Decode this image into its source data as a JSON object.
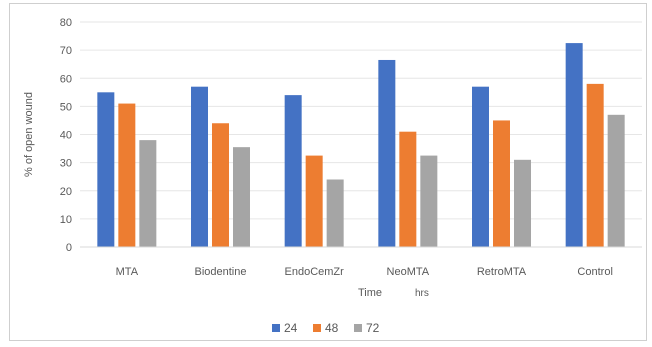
{
  "chart_data": {
    "type": "bar",
    "title": "",
    "xlabel": "Time",
    "xlabel_unit": "hrs",
    "ylabel": "% of open wound",
    "ylim": [
      0,
      80
    ],
    "yticks": [
      0,
      10,
      20,
      30,
      40,
      50,
      60,
      70,
      80
    ],
    "grid": true,
    "legend_position": "bottom",
    "categories": [
      "MTA",
      "Biodentine",
      "EndoCemZr",
      "NeoMTA",
      "RetroMTA",
      "Control"
    ],
    "series": [
      {
        "name": "24",
        "color": "#4472c4",
        "values": [
          55,
          57,
          54,
          66.5,
          57,
          72.5
        ]
      },
      {
        "name": "48",
        "color": "#ed7d31",
        "values": [
          51,
          44,
          32.5,
          41,
          45,
          58
        ]
      },
      {
        "name": "72",
        "color": "#a5a5a5",
        "values": [
          38,
          35.5,
          24,
          32.5,
          31,
          47
        ]
      }
    ]
  }
}
